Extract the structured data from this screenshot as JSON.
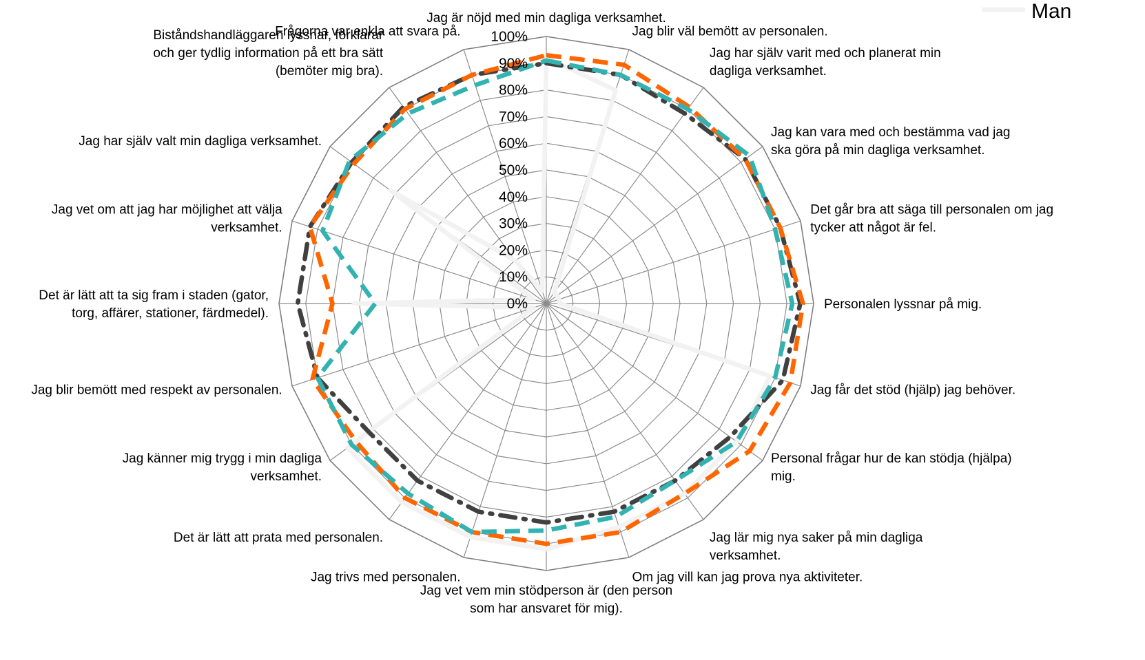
{
  "chart_data": {
    "type": "radar",
    "title": "",
    "rlim": [
      0,
      100
    ],
    "r_ticks": [
      "0%",
      "10%",
      "20%",
      "30%",
      "40%",
      "50%",
      "60%",
      "70%",
      "80%",
      "90%",
      "100%"
    ],
    "categories": [
      "Jag är nöjd med min dagliga verksamhet.",
      "Jag blir väl bemött av personalen.",
      "Jag har själv varit med och planerat min dagliga verksamhet.",
      "Jag kan vara med och bestämma vad jag ska göra på min dagliga verksamhet.",
      "Det går bra att säga till personalen om jag tycker att något är fel.",
      "Personalen lyssnar på mig.",
      "Jag får det stöd (hjälp) jag behöver.",
      "Personal frågar hur de kan stödja (hjälpa) mig.",
      "Jag lär mig nya saker på min dagliga verksamhet.",
      "Om jag vill kan jag prova nya aktiviteter.",
      "Jag vet vem min stödperson är (den person som har ansvaret för mig).",
      "Jag trivs med personalen.",
      "Det är lätt att prata med personalen.",
      "Jag känner mig trygg i min dagliga verksamhet.",
      "Jag blir bemött med respekt av personalen.",
      "Det är lätt att ta sig fram i staden (gator, torg, affärer, stationer, färdmedel).",
      "Jag vet om att jag har möjlighet att välja verksamhet.",
      "Jag har själv valt min dagliga verksamhet.",
      "Biståndshandläggaren lyssnar, förklarar och ger tydlig information på ett bra sätt (bemöter mig bra).",
      "Frågorna var enkla att svara på."
    ],
    "category_lines": [
      [
        "Jag är nöjd med min dagliga verksamhet."
      ],
      [
        "Jag blir väl bemött av personalen."
      ],
      [
        "Jag har själv varit med och planerat min",
        "dagliga verksamhet."
      ],
      [
        "Jag kan vara med och bestämma vad jag",
        "ska göra på min dagliga verksamhet."
      ],
      [
        "Det går bra att säga till personalen om jag",
        "tycker att något är fel."
      ],
      [
        "Personalen lyssnar på mig."
      ],
      [
        "Jag får det stöd (hjälp) jag behöver."
      ],
      [
        "Personal frågar hur de kan stödja (hjälpa)",
        "mig."
      ],
      [
        "Jag lär mig nya saker på min dagliga",
        "verksamhet."
      ],
      [
        "Om jag vill kan jag prova nya aktiviteter."
      ],
      [
        "Jag vet vem min stödperson är (den person",
        "som har ansvaret för mig)."
      ],
      [
        "Jag trivs med personalen."
      ],
      [
        "Det är lätt att prata med personalen."
      ],
      [
        "Jag känner mig trygg i min dagliga",
        "verksamhet."
      ],
      [
        "Jag blir bemött med respekt av personalen."
      ],
      [
        "Det är lätt att ta sig fram i staden (gator,",
        "torg, affärer, stationer, färdmedel)."
      ],
      [
        "Jag vet om att jag har möjlighet att välja",
        "verksamhet."
      ],
      [
        "Jag har själv valt min dagliga verksamhet."
      ],
      [
        "Biståndshandläggaren lyssnar, förklarar",
        "och ger tydlig information på ett bra sätt",
        "(bemöter mig bra)."
      ],
      [
        "Frågorna var enkla att svara på."
      ]
    ],
    "legend": {
      "position": "top-right",
      "visible_entries": [
        "Man"
      ]
    },
    "series": [
      {
        "name": "Man",
        "color": "#f2f2f2",
        "style": "solid",
        "values": [
          92,
          84,
          5,
          5,
          5,
          5,
          88,
          88,
          88,
          88,
          92,
          92,
          92,
          92,
          5,
          72,
          5,
          72,
          20,
          5
        ]
      },
      {
        "color": "#404040",
        "style": "dash-dot",
        "values": [
          90,
          90,
          88,
          92,
          92,
          95,
          93,
          85,
          82,
          82,
          82,
          82,
          82,
          82,
          90,
          93,
          93,
          90,
          91,
          90
        ]
      },
      {
        "color": "#ff6600",
        "style": "dash",
        "values": [
          93,
          94,
          91,
          92,
          92,
          96,
          96,
          94,
          88,
          90,
          90,
          90,
          90,
          88,
          92,
          80,
          93,
          89,
          90,
          90
        ]
      },
      {
        "color": "#33b2b2",
        "style": "dash",
        "values": [
          91,
          90,
          90,
          94,
          90,
          92,
          90,
          88,
          82,
          84,
          85,
          90,
          88,
          90,
          90,
          64,
          88,
          91,
          88,
          86
        ]
      }
    ]
  }
}
